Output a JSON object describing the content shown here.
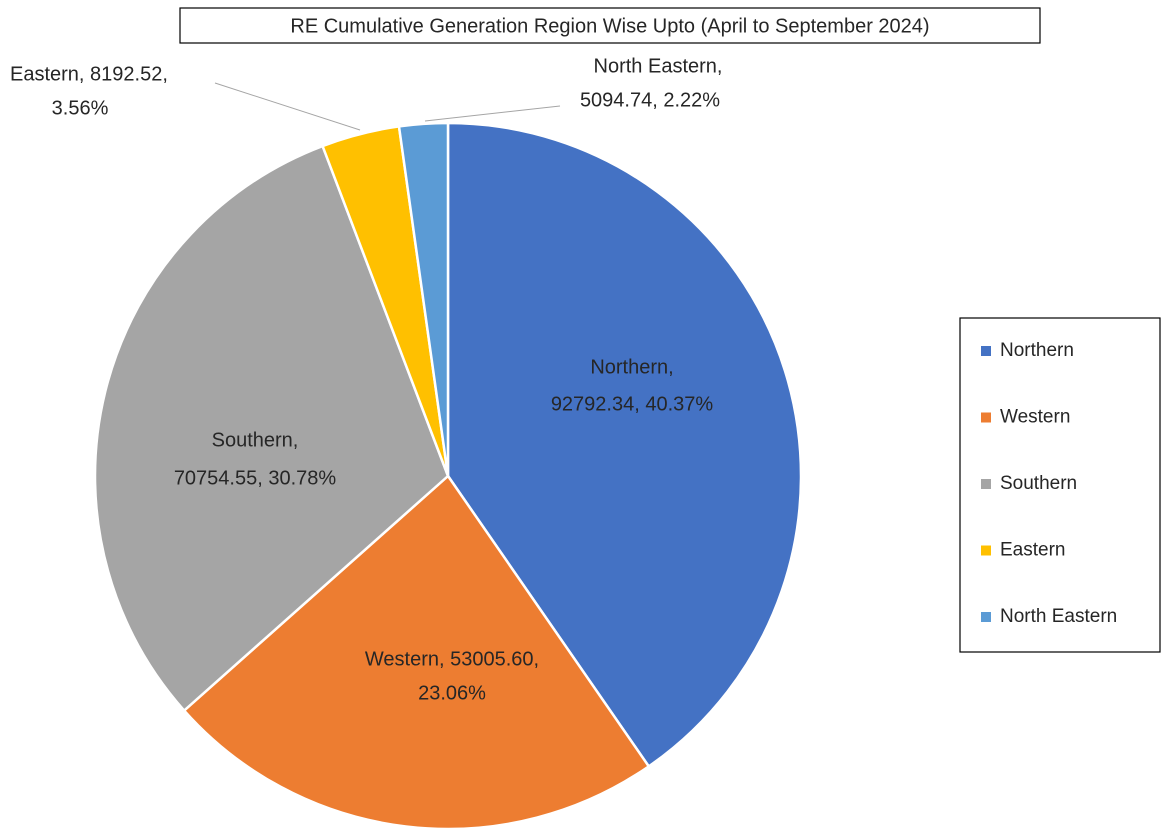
{
  "chart_data": {
    "type": "pie",
    "title": "RE Cumulative Generation Region Wise Upto (April to September 2024)",
    "categories": [
      "Northern",
      "Western",
      "Southern",
      "Eastern",
      "North Eastern"
    ],
    "values": [
      92792.34,
      53005.6,
      70754.55,
      8192.52,
      5094.74
    ],
    "value_labels": [
      [
        "Northern,",
        "92792.34, 40.37%"
      ],
      [
        "Western, 53005.60,",
        "23.06%"
      ],
      [
        "Southern,",
        "70754.55, 30.78%"
      ],
      [
        "Eastern, 8192.52,",
        "3.56%"
      ],
      [
        "North Eastern,",
        "5094.74, 2.22%"
      ]
    ],
    "colors": [
      "#4472c4",
      "#ed7d31",
      "#a5a5a5",
      "#ffc000",
      "#5b9bd5"
    ],
    "legend": "right"
  }
}
